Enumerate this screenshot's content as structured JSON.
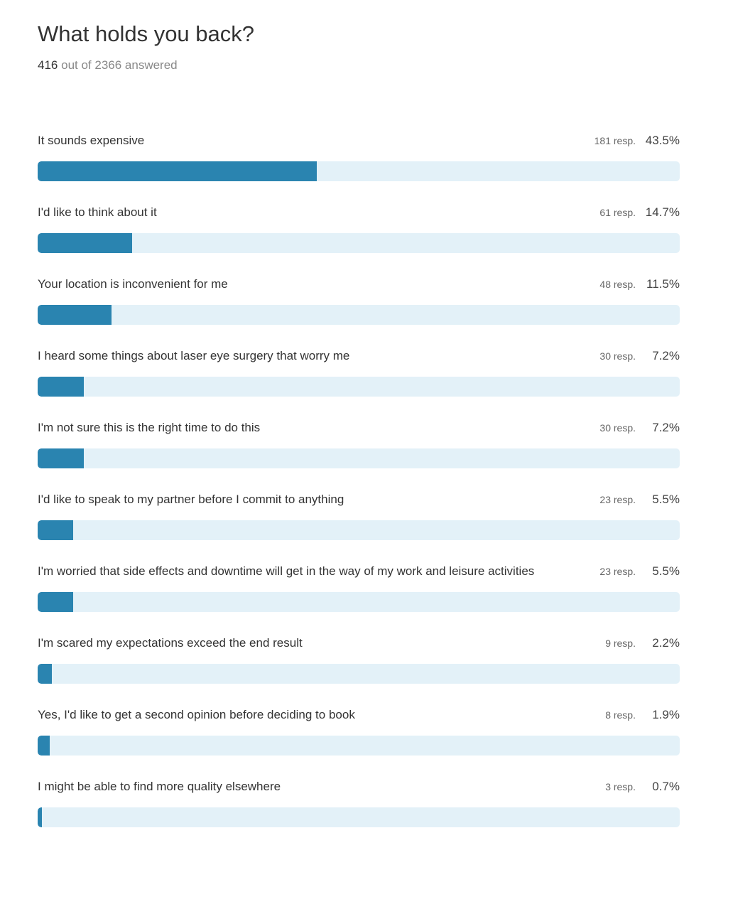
{
  "header": {
    "title": "What holds you back?",
    "answered_count": "416",
    "answered_suffix": "out of 2366 answered"
  },
  "colors": {
    "bar_fill": "#2a84b0",
    "bar_track": "#e3f1f8",
    "text": "#333333",
    "muted": "#888888"
  },
  "chart_data": {
    "type": "bar",
    "orientation": "horizontal",
    "title": "What holds you back?",
    "xlim": [
      0,
      100
    ],
    "categories": [
      "It sounds expensive",
      "I'd like to think about it",
      "Your location is inconvenient for me",
      "I heard some things about laser eye surgery that worry me",
      "I'm not sure this is the right time to do this",
      "I'd like to speak to my partner before I commit to anything",
      "I'm worried that side effects and downtime will get in the way of my work and leisure activities",
      "I'm scared my expectations exceed the end result",
      "Yes, I'd like to get a second opinion before deciding to book",
      "I might be able to find more quality elsewhere"
    ],
    "responses": [
      "181 resp.",
      "61 resp.",
      "48 resp.",
      "30 resp.",
      "30 resp.",
      "23 resp.",
      "23 resp.",
      "9 resp.",
      "8 resp.",
      "3 resp."
    ],
    "percent_labels": [
      "43.5%",
      "14.7%",
      "11.5%",
      "7.2%",
      "7.2%",
      "5.5%",
      "5.5%",
      "2.2%",
      "1.9%",
      "0.7%"
    ],
    "values": [
      43.5,
      14.7,
      11.5,
      7.2,
      7.2,
      5.5,
      5.5,
      2.2,
      1.9,
      0.7
    ]
  }
}
